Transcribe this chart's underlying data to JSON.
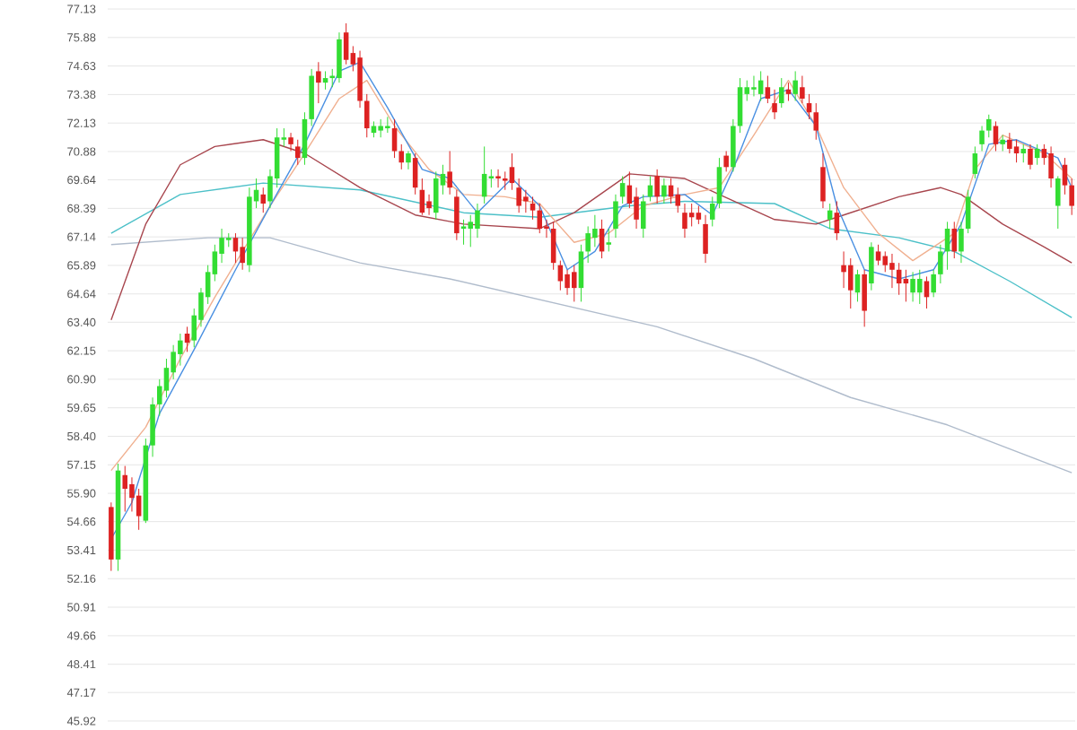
{
  "chart_data": {
    "type": "candlestick",
    "categories": [
      null,
      null,
      null,
      null,
      null,
      null,
      null,
      null,
      null,
      null,
      null,
      null,
      null,
      null,
      null,
      null,
      null,
      null,
      null,
      null,
      null,
      null,
      null,
      null,
      null,
      null,
      null,
      null,
      null,
      null,
      null,
      null,
      null,
      null,
      null,
      null,
      null,
      null,
      null,
      null,
      null,
      null,
      null,
      null,
      null,
      null,
      null,
      null,
      null,
      null,
      null,
      null,
      null,
      null,
      null,
      null,
      null,
      null,
      null,
      null,
      null,
      null,
      null,
      null,
      null,
      null,
      null,
      null,
      null,
      null,
      null,
      null,
      null,
      null,
      null,
      null,
      null,
      null,
      null,
      null,
      null,
      null,
      null,
      null,
      null,
      null,
      null,
      null,
      null,
      null,
      null,
      null,
      null,
      null,
      null,
      null,
      null,
      null,
      null,
      null,
      null,
      null,
      null,
      null,
      null,
      null,
      null,
      null,
      null,
      null,
      null,
      null,
      null,
      null,
      null,
      null,
      null,
      null,
      null,
      null,
      null,
      null,
      null,
      null,
      null,
      null,
      null,
      null,
      null,
      null,
      null,
      null,
      null,
      null,
      null,
      null,
      null,
      null,
      null,
      null
    ],
    "ohlc": [
      [
        55.3,
        55.5,
        52.5,
        53.0
      ],
      [
        53.0,
        57.2,
        52.5,
        56.9
      ],
      [
        56.7,
        57.1,
        55.1,
        56.1
      ],
      [
        56.3,
        56.6,
        55.1,
        55.7
      ],
      [
        55.8,
        56.1,
        54.3,
        54.9
      ],
      [
        54.7,
        58.3,
        54.6,
        58.0
      ],
      [
        58.0,
        60.1,
        57.5,
        59.8
      ],
      [
        59.8,
        60.9,
        59.3,
        60.6
      ],
      [
        60.4,
        61.8,
        60.1,
        61.4
      ],
      [
        61.2,
        62.4,
        60.9,
        62.1
      ],
      [
        62.0,
        62.9,
        61.5,
        62.6
      ],
      [
        62.9,
        63.2,
        62.1,
        62.5
      ],
      [
        62.6,
        64.0,
        62.3,
        63.7
      ],
      [
        63.5,
        64.9,
        63.2,
        64.7
      ],
      [
        64.5,
        65.9,
        64.2,
        65.6
      ],
      [
        65.5,
        66.8,
        65.2,
        66.5
      ],
      [
        66.4,
        67.5,
        66.0,
        67.1
      ],
      [
        67.0,
        67.3,
        66.7,
        67.1
      ],
      [
        67.1,
        67.3,
        66.0,
        66.5
      ],
      [
        66.7,
        67.1,
        65.7,
        66.0
      ],
      [
        65.9,
        69.3,
        65.6,
        68.9
      ],
      [
        68.7,
        69.7,
        68.4,
        69.2
      ],
      [
        69.0,
        69.3,
        68.2,
        68.6
      ],
      [
        68.7,
        70.1,
        68.4,
        69.8
      ],
      [
        69.7,
        71.9,
        69.3,
        71.5
      ],
      [
        71.4,
        71.9,
        71.1,
        71.5
      ],
      [
        71.5,
        71.7,
        70.9,
        71.2
      ],
      [
        71.1,
        71.4,
        70.3,
        70.6
      ],
      [
        70.6,
        72.6,
        70.3,
        72.3
      ],
      [
        72.3,
        74.5,
        72.0,
        74.2
      ],
      [
        74.4,
        74.8,
        73.0,
        73.9
      ],
      [
        73.9,
        74.4,
        73.6,
        74.1
      ],
      [
        74.1,
        74.5,
        73.7,
        74.2
      ],
      [
        74.1,
        76.1,
        73.9,
        75.8
      ],
      [
        76.1,
        76.5,
        74.7,
        74.9
      ],
      [
        75.2,
        75.5,
        74.4,
        74.7
      ],
      [
        75.0,
        75.3,
        72.8,
        73.1
      ],
      [
        73.1,
        73.4,
        71.5,
        71.9
      ],
      [
        71.7,
        72.2,
        71.5,
        72.0
      ],
      [
        71.8,
        72.3,
        71.5,
        72.0
      ],
      [
        71.9,
        72.4,
        71.7,
        72.0
      ],
      [
        71.9,
        72.3,
        70.6,
        70.9
      ],
      [
        70.9,
        71.2,
        70.1,
        70.4
      ],
      [
        70.4,
        70.9,
        70.1,
        70.8
      ],
      [
        70.6,
        70.8,
        69.0,
        69.3
      ],
      [
        69.2,
        69.7,
        68.1,
        68.2
      ],
      [
        68.7,
        69.0,
        68.1,
        68.4
      ],
      [
        68.2,
        70.0,
        67.9,
        69.7
      ],
      [
        69.4,
        70.3,
        69.0,
        69.9
      ],
      [
        70.0,
        70.9,
        69.0,
        69.3
      ],
      [
        68.9,
        69.2,
        67.0,
        67.3
      ],
      [
        67.5,
        67.9,
        66.8,
        67.6
      ],
      [
        67.5,
        68.1,
        66.7,
        67.8
      ],
      [
        67.5,
        68.6,
        67.1,
        68.3
      ],
      [
        68.9,
        71.1,
        68.6,
        69.9
      ],
      [
        69.7,
        70.1,
        69.3,
        69.8
      ],
      [
        69.8,
        70.1,
        69.3,
        69.7
      ],
      [
        69.7,
        70.0,
        69.2,
        69.6
      ],
      [
        70.2,
        70.8,
        69.2,
        69.5
      ],
      [
        69.3,
        69.7,
        68.2,
        68.5
      ],
      [
        68.9,
        69.2,
        68.2,
        68.7
      ],
      [
        68.6,
        68.9,
        67.9,
        68.3
      ],
      [
        68.3,
        68.6,
        67.3,
        67.5
      ],
      [
        67.6,
        67.9,
        67.1,
        67.5
      ],
      [
        67.5,
        67.8,
        65.7,
        66.0
      ],
      [
        65.9,
        66.1,
        64.8,
        65.2
      ],
      [
        65.5,
        65.7,
        64.6,
        64.9
      ],
      [
        65.6,
        65.9,
        64.3,
        64.9
      ],
      [
        64.9,
        66.8,
        64.3,
        66.5
      ],
      [
        66.5,
        67.6,
        66.0,
        67.3
      ],
      [
        67.1,
        68.1,
        66.7,
        67.5
      ],
      [
        67.5,
        67.9,
        66.2,
        66.5
      ],
      [
        66.8,
        67.5,
        66.5,
        66.9
      ],
      [
        67.5,
        69.0,
        67.1,
        68.7
      ],
      [
        68.9,
        69.8,
        68.6,
        69.5
      ],
      [
        69.4,
        70.0,
        68.4,
        68.6
      ],
      [
        68.9,
        69.3,
        67.5,
        67.9
      ],
      [
        67.5,
        69.0,
        67.1,
        68.7
      ],
      [
        68.9,
        69.8,
        68.7,
        69.4
      ],
      [
        69.8,
        70.1,
        68.6,
        68.9
      ],
      [
        68.9,
        69.7,
        68.6,
        69.4
      ],
      [
        69.4,
        69.7,
        68.6,
        68.9
      ],
      [
        69.0,
        69.3,
        68.2,
        68.5
      ],
      [
        68.2,
        68.6,
        67.1,
        67.5
      ],
      [
        68.2,
        68.6,
        67.6,
        68.0
      ],
      [
        68.2,
        68.5,
        67.7,
        67.9
      ],
      [
        67.7,
        68.1,
        66.0,
        66.4
      ],
      [
        67.9,
        68.9,
        67.6,
        68.6
      ],
      [
        68.6,
        70.6,
        68.4,
        70.2
      ],
      [
        70.7,
        70.9,
        70.0,
        70.2
      ],
      [
        70.2,
        72.3,
        70.0,
        72.0
      ],
      [
        72.0,
        74.1,
        71.7,
        73.7
      ],
      [
        73.4,
        74.0,
        73.1,
        73.7
      ],
      [
        73.6,
        74.2,
        73.3,
        73.7
      ],
      [
        73.4,
        74.4,
        73.1,
        74.0
      ],
      [
        73.7,
        74.2,
        73.0,
        73.2
      ],
      [
        73.0,
        73.6,
        72.3,
        72.6
      ],
      [
        73.0,
        74.1,
        72.8,
        73.7
      ],
      [
        73.6,
        73.9,
        73.1,
        73.4
      ],
      [
        73.4,
        74.4,
        73.1,
        74.0
      ],
      [
        73.7,
        74.2,
        73.0,
        73.2
      ],
      [
        73.0,
        73.4,
        72.3,
        72.6
      ],
      [
        72.6,
        73.0,
        71.4,
        71.8
      ],
      [
        70.2,
        70.8,
        68.4,
        68.7
      ],
      [
        67.9,
        68.6,
        67.5,
        68.3
      ],
      [
        68.2,
        68.7,
        67.0,
        67.3
      ],
      [
        65.9,
        66.5,
        64.9,
        65.6
      ],
      [
        65.9,
        66.2,
        64.0,
        64.8
      ],
      [
        64.7,
        65.7,
        64.3,
        65.5
      ],
      [
        65.5,
        65.7,
        63.2,
        63.9
      ],
      [
        65.1,
        66.9,
        64.8,
        66.7
      ],
      [
        66.5,
        66.8,
        65.9,
        66.1
      ],
      [
        66.3,
        66.5,
        65.6,
        65.9
      ],
      [
        66.0,
        66.4,
        64.9,
        65.7
      ],
      [
        65.7,
        66.0,
        64.6,
        65.1
      ],
      [
        65.3,
        65.7,
        64.3,
        65.1
      ],
      [
        64.7,
        65.6,
        64.3,
        65.3
      ],
      [
        64.7,
        65.7,
        64.2,
        65.3
      ],
      [
        65.2,
        65.4,
        64.0,
        64.5
      ],
      [
        64.7,
        65.7,
        64.5,
        65.5
      ],
      [
        65.5,
        66.8,
        65.1,
        66.5
      ],
      [
        66.5,
        67.8,
        65.7,
        67.5
      ],
      [
        67.5,
        67.8,
        66.2,
        66.5
      ],
      [
        66.5,
        67.8,
        66.0,
        67.5
      ],
      [
        67.5,
        69.2,
        67.3,
        68.9
      ],
      [
        69.9,
        71.1,
        69.7,
        70.8
      ],
      [
        71.2,
        72.0,
        70.9,
        71.8
      ],
      [
        71.8,
        72.5,
        71.5,
        72.3
      ],
      [
        72.0,
        72.2,
        70.9,
        71.2
      ],
      [
        71.2,
        71.6,
        70.9,
        71.4
      ],
      [
        71.4,
        71.7,
        70.8,
        71.0
      ],
      [
        71.1,
        71.4,
        70.4,
        70.8
      ],
      [
        70.8,
        71.2,
        70.4,
        71.0
      ],
      [
        71.0,
        71.2,
        70.1,
        70.3
      ],
      [
        70.6,
        71.2,
        70.3,
        71.0
      ],
      [
        71.0,
        71.2,
        70.3,
        70.6
      ],
      [
        70.8,
        71.1,
        69.3,
        69.7
      ],
      [
        68.5,
        69.8,
        67.5,
        69.7
      ],
      [
        70.3,
        70.6,
        69.0,
        69.4
      ],
      [
        69.4,
        69.7,
        68.1,
        68.5
      ]
    ],
    "series": [
      {
        "type": "line",
        "color": "#b0bccc",
        "values": [
          66.8,
          null,
          null,
          null,
          null,
          null,
          null,
          null,
          null,
          null,
          null,
          null,
          null,
          null,
          67.1,
          null,
          null,
          null,
          null,
          null,
          null,
          null,
          null,
          67.1,
          null,
          null,
          null,
          null,
          null,
          null,
          null,
          null,
          null,
          null,
          null,
          null,
          66.0,
          null,
          null,
          null,
          null,
          null,
          null,
          null,
          null,
          null,
          null,
          null,
          null,
          65.3,
          null,
          null,
          null,
          null,
          null,
          null,
          null,
          null,
          null,
          null,
          null,
          null,
          null,
          null,
          null,
          null,
          null,
          null,
          null,
          null,
          null,
          null,
          null,
          null,
          null,
          null,
          null,
          null,
          null,
          63.2,
          null,
          null,
          null,
          null,
          null,
          null,
          null,
          null,
          null,
          null,
          null,
          null,
          null,
          61.8,
          null,
          null,
          null,
          null,
          null,
          null,
          null,
          null,
          null,
          null,
          null,
          null,
          null,
          60.1,
          null,
          null,
          null,
          null,
          null,
          null,
          null,
          null,
          null,
          null,
          null,
          null,
          null,
          58.9,
          null,
          null,
          null,
          null,
          null,
          null,
          null,
          null,
          null,
          null,
          null,
          null,
          null,
          null,
          null,
          null,
          null,
          56.8
        ]
      },
      {
        "type": "line",
        "color": "#4cc0c8",
        "values": [
          67.3,
          null,
          null,
          null,
          null,
          null,
          null,
          null,
          null,
          null,
          69.0,
          null,
          null,
          null,
          null,
          null,
          null,
          null,
          null,
          null,
          null,
          null,
          69.5,
          null,
          null,
          null,
          null,
          null,
          null,
          null,
          null,
          null,
          null,
          null,
          null,
          null,
          69.2,
          null,
          null,
          null,
          null,
          null,
          null,
          null,
          null,
          null,
          null,
          null,
          null,
          null,
          null,
          68.2,
          null,
          null,
          null,
          null,
          null,
          null,
          null,
          null,
          null,
          null,
          68.0,
          null,
          null,
          null,
          null,
          null,
          null,
          null,
          null,
          null,
          null,
          null,
          null,
          68.5,
          null,
          null,
          null,
          null,
          null,
          null,
          null,
          68.7,
          null,
          null,
          null,
          null,
          null,
          null,
          null,
          null,
          null,
          null,
          null,
          null,
          68.6,
          null,
          null,
          null,
          null,
          null,
          null,
          null,
          67.5,
          null,
          null,
          null,
          null,
          null,
          null,
          null,
          null,
          null,
          67.1,
          null,
          null,
          null,
          null,
          null,
          null,
          null,
          66.5,
          null,
          null,
          null,
          null,
          null,
          null,
          null,
          65.2,
          null,
          null,
          null,
          null,
          null,
          null,
          null,
          null,
          63.6
        ]
      },
      {
        "type": "line",
        "color": "#a8464e",
        "values": [
          63.5,
          null,
          null,
          null,
          null,
          67.7,
          null,
          null,
          null,
          null,
          70.3,
          null,
          null,
          null,
          null,
          71.1,
          null,
          null,
          null,
          null,
          null,
          null,
          71.4,
          null,
          null,
          null,
          null,
          null,
          70.8,
          null,
          null,
          null,
          null,
          null,
          null,
          null,
          69.3,
          null,
          null,
          null,
          null,
          null,
          null,
          null,
          68.1,
          null,
          null,
          null,
          null,
          null,
          null,
          67.7,
          null,
          null,
          null,
          null,
          null,
          null,
          null,
          null,
          null,
          null,
          67.5,
          null,
          null,
          null,
          null,
          68.2,
          null,
          null,
          null,
          null,
          null,
          null,
          null,
          69.9,
          null,
          null,
          null,
          null,
          null,
          null,
          null,
          69.7,
          null,
          null,
          null,
          null,
          69.0,
          null,
          null,
          null,
          null,
          null,
          null,
          null,
          67.9,
          null,
          null,
          null,
          null,
          null,
          67.7,
          null,
          null,
          null,
          68.1,
          null,
          null,
          null,
          null,
          null,
          null,
          null,
          68.9,
          null,
          null,
          null,
          null,
          null,
          69.3,
          null,
          null,
          69.0,
          null,
          null,
          null,
          null,
          null,
          67.7,
          null,
          null,
          null,
          null,
          null,
          66.7,
          null,
          null,
          null,
          66.0
        ]
      },
      {
        "type": "line",
        "color": "#f0b090",
        "values": [
          56.9,
          null,
          null,
          null,
          null,
          58.8,
          null,
          null,
          null,
          null,
          61.8,
          null,
          null,
          null,
          null,
          64.5,
          null,
          null,
          null,
          null,
          null,
          null,
          null,
          68.5,
          null,
          null,
          null,
          null,
          70.8,
          null,
          null,
          null,
          null,
          73.2,
          null,
          null,
          null,
          74.0,
          null,
          null,
          null,
          72.0,
          null,
          null,
          null,
          null,
          70.1,
          null,
          null,
          null,
          null,
          69.0,
          null,
          null,
          null,
          null,
          null,
          68.9,
          null,
          null,
          null,
          null,
          68.6,
          null,
          null,
          null,
          null,
          66.9,
          null,
          null,
          null,
          null,
          67.3,
          null,
          null,
          null,
          null,
          68.5,
          null,
          null,
          null,
          null,
          null,
          69.0,
          null,
          null,
          null,
          null,
          69.3,
          null,
          null,
          null,
          null,
          71.6,
          null,
          null,
          null,
          null,
          74.0,
          null,
          null,
          null,
          72.0,
          null,
          null,
          null,
          69.3,
          null,
          null,
          null,
          null,
          67.3,
          null,
          null,
          null,
          null,
          66.1,
          null,
          null,
          null,
          null,
          null,
          67.3,
          null,
          null,
          70.1,
          null,
          null,
          null,
          71.6,
          null,
          null,
          null,
          null,
          null,
          70.8,
          null,
          null,
          null,
          69.7
        ]
      },
      {
        "type": "line",
        "color": "#4a90e2",
        "values": [
          53.9,
          null,
          null,
          55.5,
          null,
          null,
          null,
          59.4,
          null,
          null,
          null,
          null,
          62.2,
          null,
          null,
          null,
          null,
          null,
          65.7,
          null,
          null,
          null,
          null,
          68.5,
          null,
          null,
          null,
          null,
          71.2,
          null,
          null,
          null,
          null,
          74.4,
          null,
          null,
          74.8,
          null,
          null,
          null,
          72.8,
          null,
          null,
          null,
          null,
          70.1,
          null,
          null,
          null,
          69.7,
          null,
          null,
          null,
          68.2,
          null,
          null,
          null,
          null,
          69.7,
          null,
          null,
          null,
          68.5,
          null,
          null,
          null,
          65.7,
          null,
          null,
          null,
          66.5,
          null,
          null,
          null,
          68.5,
          null,
          null,
          68.9,
          null,
          null,
          null,
          null,
          null,
          69.0,
          null,
          null,
          null,
          68.1,
          null,
          null,
          70.1,
          null,
          null,
          null,
          73.2,
          null,
          null,
          null,
          73.6,
          null,
          null,
          null,
          72.0,
          null,
          null,
          68.5,
          null,
          null,
          null,
          65.7,
          null,
          null,
          null,
          null,
          65.3,
          null,
          null,
          null,
          null,
          65.7,
          null,
          null,
          null,
          67.7,
          null,
          null,
          null,
          71.2,
          null,
          null,
          null,
          71.4,
          null,
          null,
          null,
          null,
          null,
          70.6,
          null,
          69.3
        ]
      }
    ],
    "ylim": [
      45.92,
      77.13
    ],
    "yticks": [
      45.92,
      47.17,
      48.41,
      49.66,
      50.91,
      52.16,
      53.41,
      54.66,
      {
        "value": 55.9,
        "label": "55.90"
      },
      57.15,
      {
        "value": 58.4,
        "label": "58.40"
      },
      59.65,
      {
        "value": 60.9,
        "label": "60.90"
      },
      62.15,
      {
        "value": 63.4,
        "label": "63.40"
      },
      64.64,
      65.89,
      67.14,
      68.39,
      69.64,
      70.88,
      72.13,
      73.38,
      74.63,
      75.88,
      77.13
    ],
    "grid": "y",
    "tick_labels": "y"
  }
}
